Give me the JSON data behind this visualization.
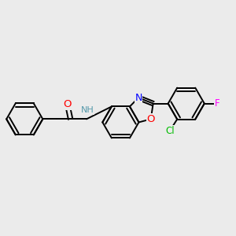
{
  "background_color": "#ebebeb",
  "bond_color": "#000000",
  "bond_width": 1.4,
  "atom_colors": {
    "O": "#ff0000",
    "N_amide": "#5599aa",
    "N_ring": "#0000ff",
    "Cl": "#00bb00",
    "F": "#ff00ff"
  },
  "font_size": 8.5,
  "fig_width": 3.0,
  "fig_height": 3.0,
  "dpi": 100
}
